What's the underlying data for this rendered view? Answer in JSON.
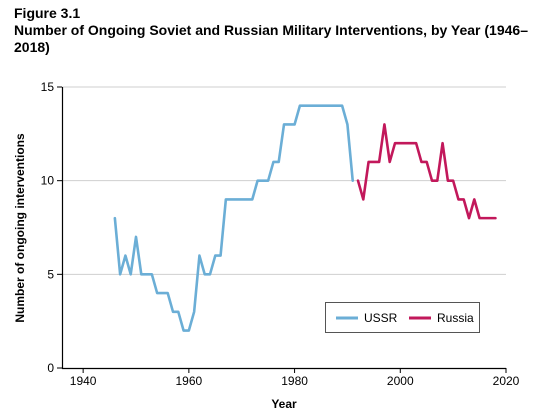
{
  "figure": {
    "label": "Figure 3.1",
    "title": "Number of Ongoing Soviet and Russian Military Interventions, by Year (1946–2018)"
  },
  "chart_data": {
    "type": "line",
    "xlabel": "Year",
    "ylabel": "Number of ongoing interventions",
    "xlim": [
      1936,
      2020
    ],
    "ylim": [
      0,
      15
    ],
    "xticks": [
      1940,
      1960,
      1980,
      2000,
      2020
    ],
    "yticks": [
      0,
      5,
      10,
      15
    ],
    "grid": "horizontal",
    "legend": "bottom-right",
    "series": [
      {
        "name": "USSR",
        "color": "#6baed6",
        "x": [
          1946,
          1947,
          1948,
          1949,
          1950,
          1951,
          1952,
          1953,
          1954,
          1955,
          1956,
          1957,
          1958,
          1959,
          1960,
          1961,
          1962,
          1963,
          1964,
          1965,
          1966,
          1967,
          1968,
          1969,
          1970,
          1971,
          1972,
          1973,
          1974,
          1975,
          1976,
          1977,
          1978,
          1979,
          1980,
          1981,
          1982,
          1983,
          1984,
          1985,
          1986,
          1987,
          1988,
          1989,
          1990,
          1991
        ],
        "y": [
          8,
          5,
          6,
          5,
          7,
          5,
          5,
          5,
          4,
          4,
          4,
          3,
          3,
          2,
          2,
          3,
          6,
          5,
          5,
          6,
          6,
          9,
          9,
          9,
          9,
          9,
          9,
          10,
          10,
          10,
          11,
          11,
          13,
          13,
          13,
          14,
          14,
          14,
          14,
          14,
          14,
          14,
          14,
          14,
          13,
          10
        ]
      },
      {
        "name": "Russia",
        "color": "#c2185b",
        "x": [
          1992,
          1993,
          1994,
          1995,
          1996,
          1997,
          1998,
          1999,
          2000,
          2001,
          2002,
          2003,
          2004,
          2005,
          2006,
          2007,
          2008,
          2009,
          2010,
          2011,
          2012,
          2013,
          2014,
          2015,
          2016,
          2017,
          2018
        ],
        "y": [
          10,
          9,
          11,
          11,
          11,
          13,
          11,
          12,
          12,
          12,
          12,
          12,
          11,
          11,
          10,
          10,
          12,
          10,
          10,
          9,
          9,
          8,
          9,
          8,
          8,
          8,
          8
        ]
      }
    ]
  }
}
